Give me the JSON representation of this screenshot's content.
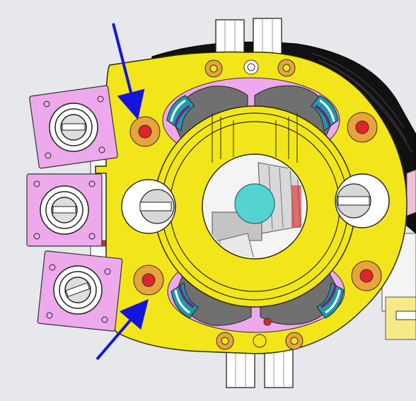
{
  "viewport": {
    "background": "#e6e8ec"
  },
  "colors": {
    "yellow_body": "#f2e61a",
    "yellow_edge": "#2a2a00",
    "pink_mount": "#eea8ec",
    "orange_ring": "#e8a33c",
    "red_dot": "#e0242a",
    "cyan_hub": "#55d3d3",
    "arrow_blue": "#1414e0",
    "purple_accent": "#6a2a7a",
    "teal_accent": "#1f9aa8",
    "gray_cavity": "#707070"
  },
  "annotations": {
    "arrows": [
      "arrow-top-left",
      "arrow-bottom-left"
    ]
  }
}
